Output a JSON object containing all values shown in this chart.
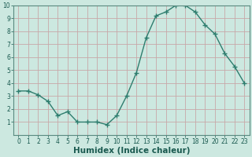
{
  "xlabel": "Humidex (Indice chaleur)",
  "x": [
    0,
    1,
    2,
    3,
    4,
    5,
    6,
    7,
    8,
    9,
    10,
    11,
    12,
    13,
    14,
    15,
    16,
    17,
    18,
    19,
    20,
    21,
    22,
    23
  ],
  "y": [
    3.4,
    3.4,
    3.1,
    2.6,
    1.5,
    1.8,
    1.0,
    1.0,
    1.0,
    0.8,
    1.5,
    3.0,
    4.8,
    7.5,
    9.2,
    9.5,
    10.0,
    10.0,
    9.5,
    8.5,
    7.8,
    6.3,
    5.3,
    4.0
  ],
  "line_color": "#2e7d6e",
  "marker": "+",
  "marker_size": 4,
  "line_width": 1.0,
  "bg_color": "#cce8e0",
  "grid_color": "#c8a8a8",
  "ylim": [
    0,
    10
  ],
  "xlim": [
    -0.5,
    23.5
  ],
  "yticks": [
    1,
    2,
    3,
    4,
    5,
    6,
    7,
    8,
    9,
    10
  ],
  "xticks": [
    0,
    1,
    2,
    3,
    4,
    5,
    6,
    7,
    8,
    9,
    10,
    11,
    12,
    13,
    14,
    15,
    16,
    17,
    18,
    19,
    20,
    21,
    22,
    23
  ],
  "tick_fontsize": 5.5,
  "xlabel_fontsize": 7.5,
  "tick_color": "#1a5a50",
  "spine_color": "#5a8a80"
}
